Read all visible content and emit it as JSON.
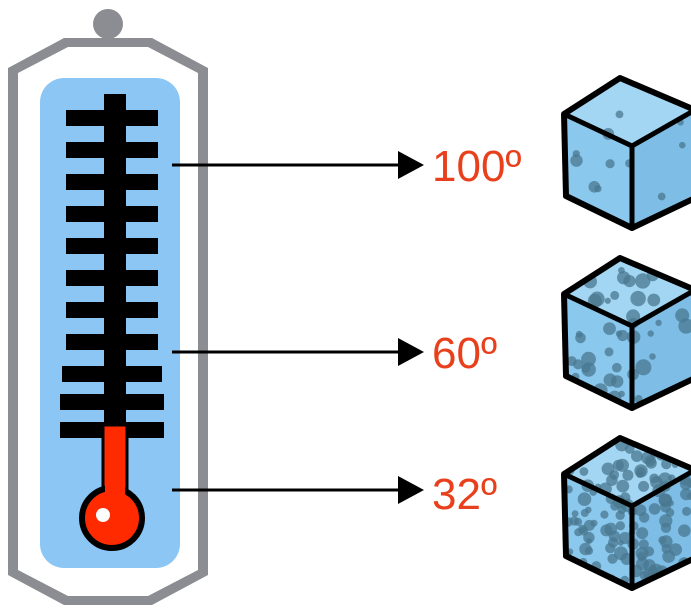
{
  "colors": {
    "frame": "#8c8d92",
    "tube_fill": "#8cc6f5",
    "ink": "#000000",
    "mercury": "#ff2a00",
    "label": "#e8401c",
    "cube_fill": "#8bc8ee",
    "bubble": "#4a7890"
  },
  "thermometer": {
    "icon": "thermometer-icon"
  },
  "readings": [
    {
      "label": "100º",
      "bubble_density": 1
    },
    {
      "label": "60º",
      "bubble_density": 2
    },
    {
      "label": "32º",
      "bubble_density": 3
    }
  ]
}
